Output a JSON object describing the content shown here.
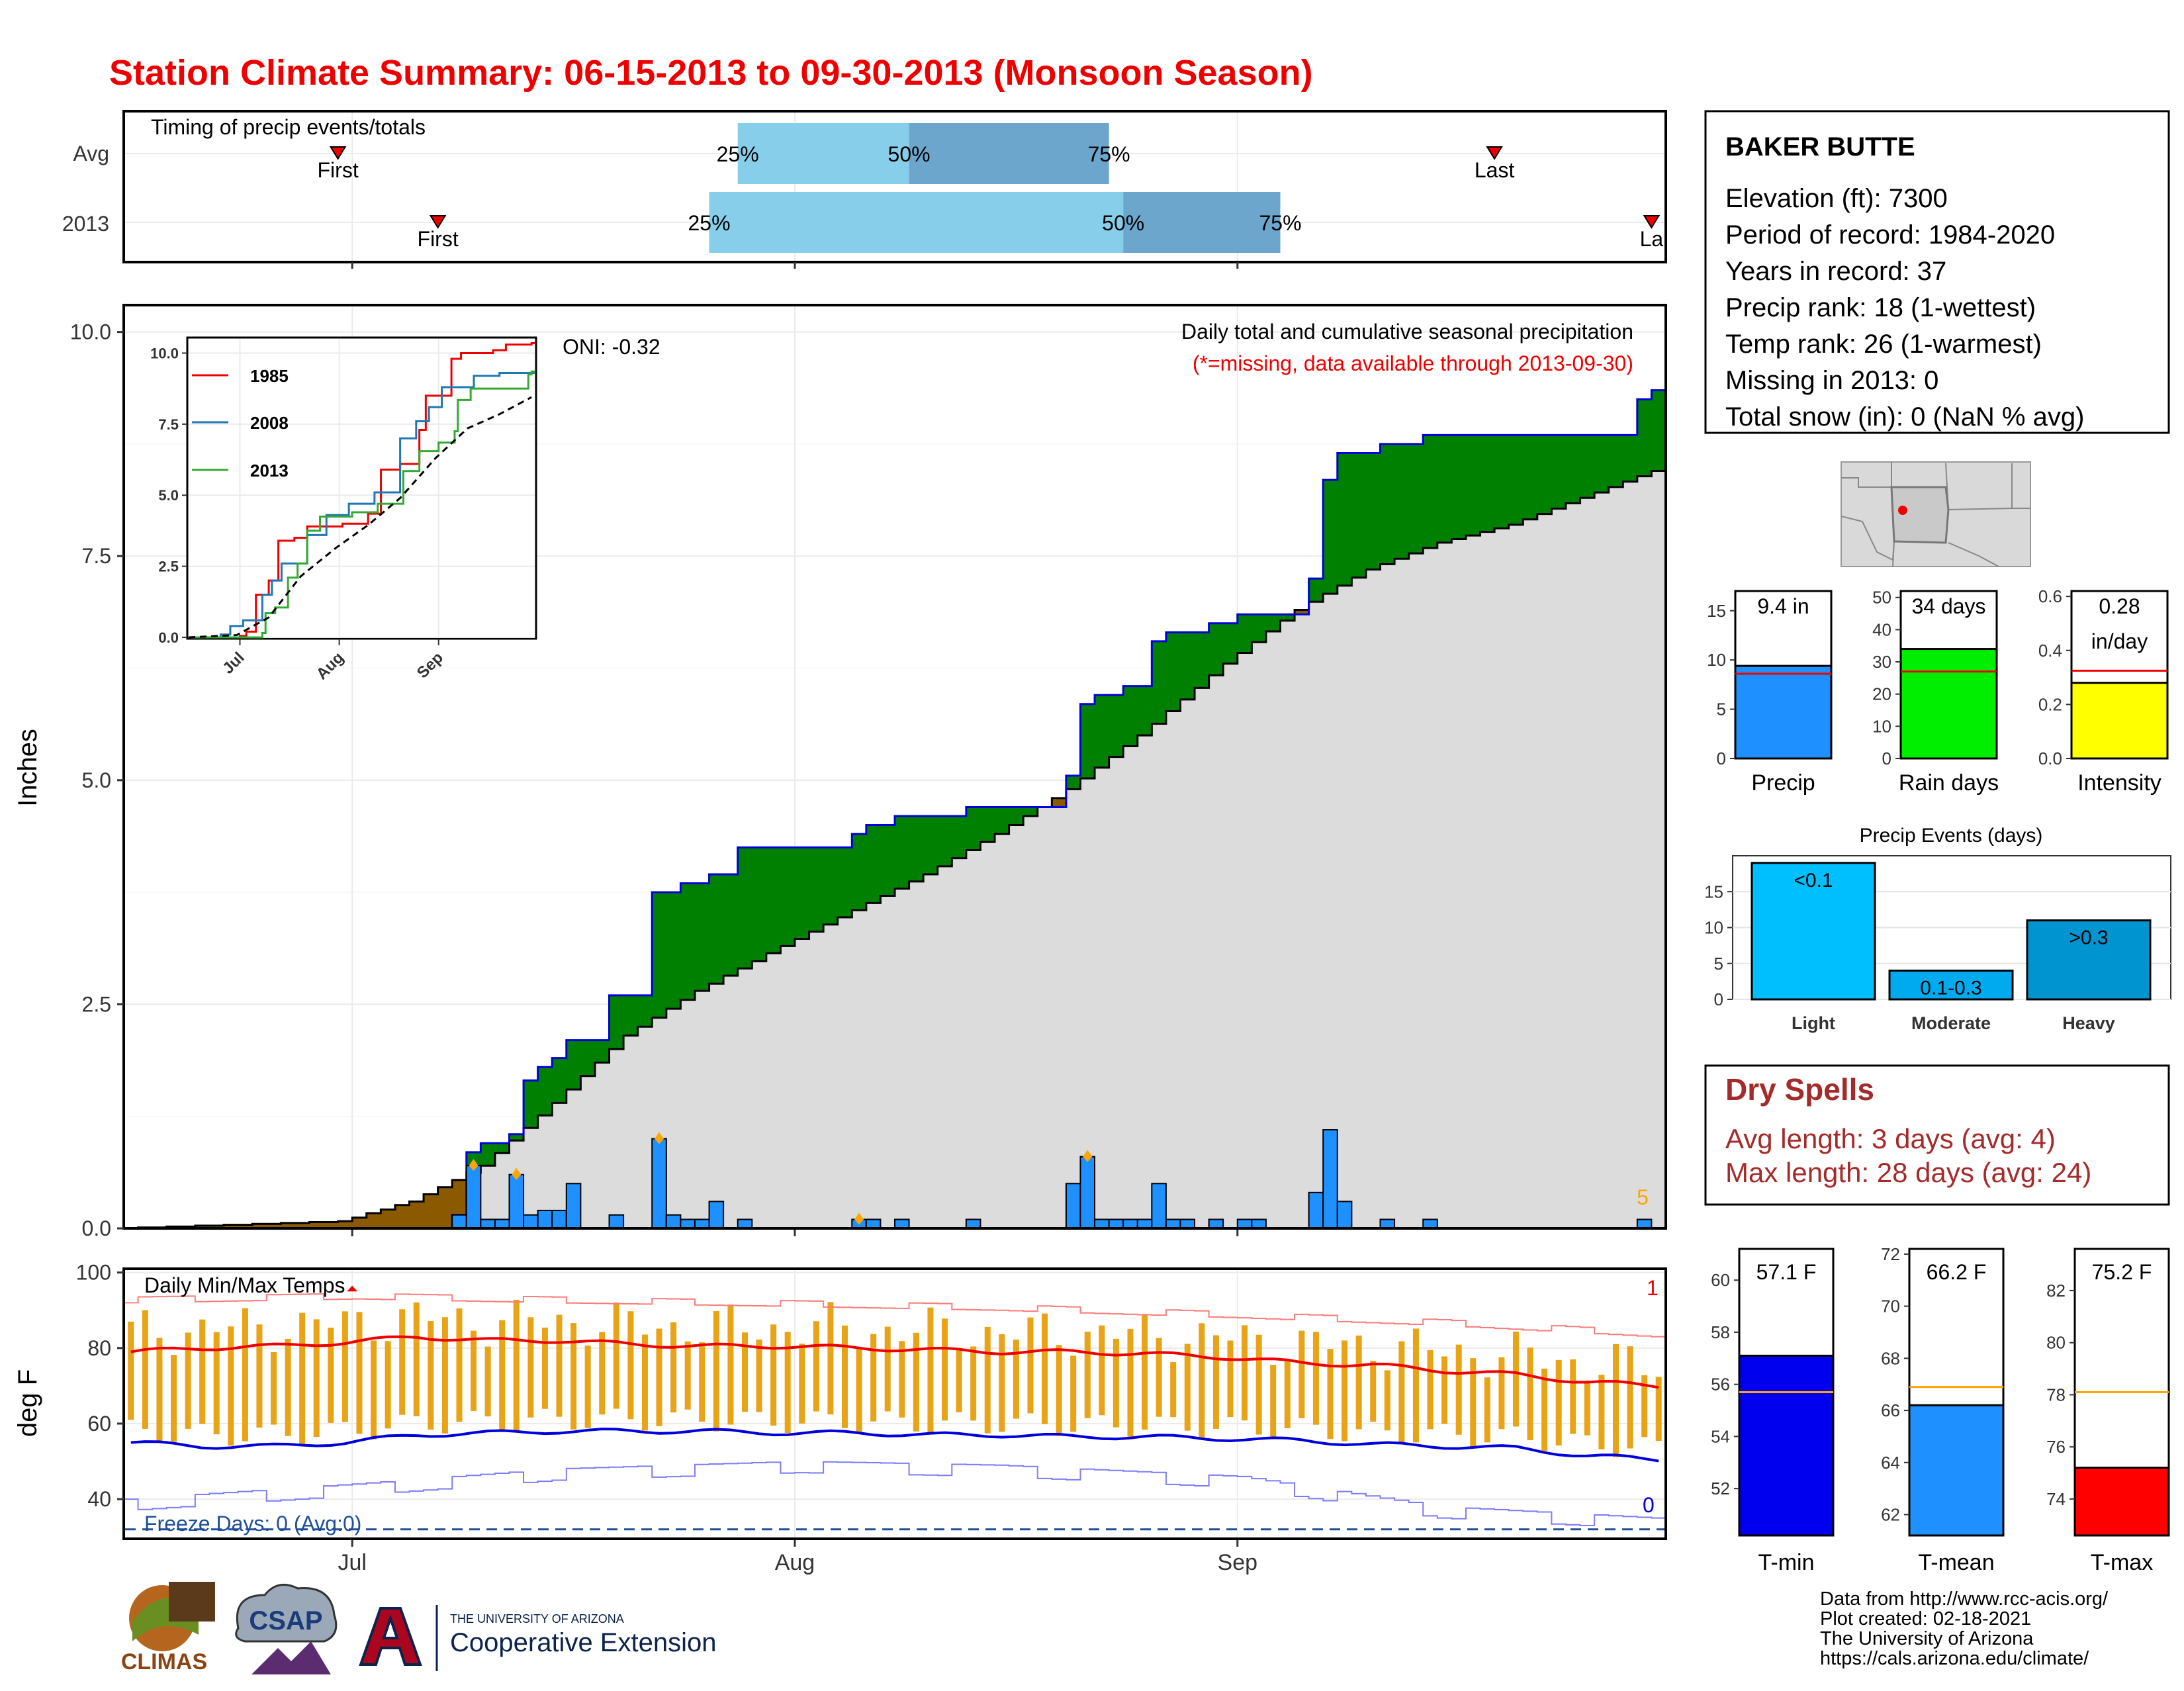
{
  "title": "Station Climate Summary: 06-15-2013 to 09-30-2013 (Monsoon Season)",
  "colors": {
    "title": "#ee0000",
    "precip_bar": "#1e90ff",
    "surplus": "#008000",
    "deficit": "#8b5a00",
    "avg_fill": "#dcdcdc",
    "timing_light": "#87ceeb",
    "timing_dark": "#6ca6cd",
    "tmax_line": "#ee0000",
    "tmin_line": "#0000dd",
    "temp_bar": "#e8a317",
    "dry_spell": "#a52a2a"
  },
  "timing": {
    "title": "Timing of precip events/totals",
    "rows": [
      {
        "label": "Avg",
        "first_label": "First",
        "last_label": "Last",
        "first_date": "2013-06-30",
        "last_date": "2013-09-19",
        "p25_label": "25%",
        "p50_label": "50%",
        "p75_label": "75%",
        "p25_date": "2013-07-28",
        "p50_date": "2013-08-09",
        "p75_date": "2013-08-23"
      },
      {
        "label": "2013",
        "first_label": "First",
        "last_label": "La",
        "first_date": "2013-07-07",
        "last_date": "2013-09-30",
        "p25_date": "2013-07-26",
        "p50_date": "2013-08-24",
        "p75_date": "2013-09-04",
        "p25_label": "25%",
        "p50_label": "50%",
        "p75_label": "75%"
      }
    ]
  },
  "main": {
    "y_label": "Inches",
    "subtitle": "Daily total and cumulative seasonal precipitation",
    "missing_note": "(*=missing, data available through 2013-09-30)",
    "oni": "ONI: -0.32",
    "corner_label": "5",
    "y_ticks": [
      "0.0",
      "2.5",
      "5.0",
      "7.5",
      "10.0"
    ],
    "x_ticks": [
      "Jul",
      "Aug",
      "Sep"
    ]
  },
  "inset": {
    "legend": [
      "1985",
      "2008",
      "2013"
    ],
    "y_ticks": [
      "0.0",
      "2.5",
      "5.0",
      "7.5",
      "10.0"
    ],
    "x_ticks": [
      "Jul",
      "Aug",
      "Sep"
    ]
  },
  "temps": {
    "y_label": "deg F",
    "title": "Daily Min/Max Temps",
    "freeze": "Freeze Days: 0 (Avg:0)",
    "top_count": "1",
    "bottom_count": "0",
    "y_ticks": [
      "40",
      "60",
      "80",
      "100"
    ]
  },
  "station": {
    "name": "BAKER BUTTE",
    "lines": [
      "Elevation (ft): 7300",
      "Period of record: 1984-2020",
      "Years in record: 37",
      "Precip rank: 18 (1-wettest)",
      "Temp rank: 26 (1-warmest)",
      "Missing in 2013: 0",
      "Total snow (in): 0 (NaN % avg)"
    ]
  },
  "mini_bars": [
    {
      "label": "Precip",
      "value_text": "9.4 in",
      "value": 9.4,
      "avg": 8.6,
      "ymax": 17,
      "ticks": [
        "0",
        "5",
        "10",
        "15"
      ],
      "tick_vals": [
        0,
        5,
        10,
        15
      ],
      "color": "#1e90ff"
    },
    {
      "label": "Rain days",
      "value_text": "34 days",
      "value": 34,
      "avg": 27,
      "ymax": 52,
      "ticks": [
        "0",
        "10",
        "20",
        "30",
        "40",
        "50"
      ],
      "tick_vals": [
        0,
        10,
        20,
        30,
        40,
        50
      ],
      "color": "#00ee00"
    },
    {
      "label": "Intensity",
      "value_text": "0.28",
      "value_text2": "in/day",
      "value": 0.28,
      "avg": 0.325,
      "ymax": 0.62,
      "ticks": [
        "0.0",
        "0.2",
        "0.4",
        "0.6"
      ],
      "tick_vals": [
        0,
        0.2,
        0.4,
        0.6
      ],
      "color": "#ffff00"
    }
  ],
  "events": {
    "title": "Precip Events (days)",
    "y_ticks": [
      "0",
      "5",
      "10",
      "15"
    ],
    "categories": [
      "Light",
      "Moderate",
      "Heavy"
    ],
    "bar_labels": [
      "<0.1",
      "0.1-0.3",
      ">0.3"
    ],
    "values": [
      19,
      4,
      11
    ]
  },
  "dry": {
    "title": "Dry Spells",
    "avg": "Avg length: 3 days (avg: 4)",
    "max": "Max length: 28 days (avg: 24)"
  },
  "temp_bars": [
    {
      "label": "T-min",
      "value_text": "57.1 F",
      "value": 57.1,
      "avg": 55.7,
      "ymin": 50.2,
      "ymax": 61.2,
      "ticks": [
        "52",
        "54",
        "56",
        "58",
        "60"
      ],
      "tick_vals": [
        52,
        54,
        56,
        58,
        60
      ],
      "color": "#0000ee"
    },
    {
      "label": "T-mean",
      "value_text": "66.2 F",
      "value": 66.2,
      "avg": 66.9,
      "ymin": 61.2,
      "ymax": 72.2,
      "ticks": [
        "62",
        "64",
        "66",
        "68",
        "70",
        "72"
      ],
      "tick_vals": [
        62,
        64,
        66,
        68,
        70,
        72
      ],
      "color": "#1e90ff"
    },
    {
      "label": "T-max",
      "value_text": "75.2 F",
      "value": 75.2,
      "avg": 78.1,
      "ymin": 72.6,
      "ymax": 83.6,
      "ticks": [
        "74",
        "76",
        "78",
        "80",
        "82"
      ],
      "tick_vals": [
        74,
        76,
        78,
        80,
        82
      ],
      "color": "#ff0000"
    }
  ],
  "footer": [
    "Data from http://www.rcc-acis.org/",
    "Plot created: 02-18-2021",
    "The University of Arizona",
    "https://cals.arizona.edu/climate/"
  ],
  "logos": {
    "climas": "CLIMAS",
    "csap": "CSAP",
    "ua_small": "THE UNIVERSITY OF ARIZONA",
    "ua_big": "Cooperative Extension"
  },
  "chart_data": [
    {
      "type": "bar",
      "title": "Daily total and cumulative seasonal precipitation",
      "ylabel": "Inches",
      "ylim": [
        0,
        10.3
      ],
      "x_range": [
        "2013-06-15",
        "2013-09-30"
      ],
      "daily_precip": {
        "dates": [
          "2013-07-08",
          "2013-07-09",
          "2013-07-10",
          "2013-07-11",
          "2013-07-12",
          "2013-07-13",
          "2013-07-14",
          "2013-07-15",
          "2013-07-16",
          "2013-07-19",
          "2013-07-22",
          "2013-07-23",
          "2013-07-24",
          "2013-07-25",
          "2013-07-26",
          "2013-07-28",
          "2013-08-05",
          "2013-08-06",
          "2013-08-08",
          "2013-08-13",
          "2013-08-20",
          "2013-08-21",
          "2013-08-22",
          "2013-08-23",
          "2013-08-24",
          "2013-08-25",
          "2013-08-26",
          "2013-08-27",
          "2013-08-28",
          "2013-08-30",
          "2013-09-01",
          "2013-09-02",
          "2013-09-06",
          "2013-09-07",
          "2013-09-08",
          "2013-09-11",
          "2013-09-14",
          "2013-09-29"
        ],
        "values": [
          0.15,
          0.7,
          0.1,
          0.1,
          0.6,
          0.15,
          0.2,
          0.2,
          0.5,
          0.15,
          1.0,
          0.15,
          0.1,
          0.1,
          0.3,
          0.1,
          0.1,
          0.1,
          0.1,
          0.1,
          0.5,
          0.8,
          0.1,
          0.1,
          0.1,
          0.1,
          0.5,
          0.1,
          0.1,
          0.1,
          0.1,
          0.1,
          0.4,
          1.1,
          0.3,
          0.1,
          0.1,
          0.1
        ]
      },
      "cumulative_2013": {
        "dates": [
          "2013-06-15",
          "2013-07-08",
          "2013-07-09",
          "2013-07-10",
          "2013-07-12",
          "2013-07-13",
          "2013-07-14",
          "2013-07-15",
          "2013-07-16",
          "2013-07-19",
          "2013-07-22",
          "2013-07-24",
          "2013-07-26",
          "2013-07-28",
          "2013-08-05",
          "2013-08-06",
          "2013-08-08",
          "2013-08-13",
          "2013-08-20",
          "2013-08-21",
          "2013-08-22",
          "2013-08-24",
          "2013-08-26",
          "2013-08-27",
          "2013-08-30",
          "2013-09-01",
          "2013-09-06",
          "2013-09-07",
          "2013-09-08",
          "2013-09-11",
          "2013-09-14",
          "2013-09-29",
          "2013-09-30"
        ],
        "values": [
          0.0,
          0.15,
          0.85,
          0.95,
          1.05,
          1.65,
          1.8,
          1.9,
          2.1,
          2.6,
          3.75,
          3.85,
          3.95,
          4.25,
          4.4,
          4.5,
          4.6,
          4.7,
          5.05,
          5.85,
          5.95,
          6.05,
          6.55,
          6.65,
          6.75,
          6.85,
          7.25,
          8.35,
          8.65,
          8.75,
          8.85,
          9.25,
          9.35
        ]
      },
      "average_cumulative": {
        "dates": [
          "2013-06-15",
          "2013-06-30",
          "2013-07-05",
          "2013-07-10",
          "2013-07-15",
          "2013-07-20",
          "2013-07-25",
          "2013-07-31",
          "2013-08-05",
          "2013-08-10",
          "2013-08-15",
          "2013-08-20",
          "2013-08-25",
          "2013-08-31",
          "2013-09-05",
          "2013-09-10",
          "2013-09-15",
          "2013-09-20",
          "2013-09-25",
          "2013-09-30"
        ],
        "values": [
          0.0,
          0.08,
          0.3,
          0.7,
          1.4,
          2.15,
          2.65,
          3.15,
          3.55,
          3.95,
          4.4,
          4.9,
          5.5,
          6.3,
          6.9,
          7.35,
          7.65,
          7.85,
          8.15,
          8.45
        ]
      }
    },
    {
      "type": "line",
      "title": "",
      "ylim": [
        0,
        10.5
      ],
      "x_range": [
        "2013-06-15",
        "2013-09-30"
      ],
      "series": [
        {
          "name": "1985",
          "color": "#ee0000",
          "dates": [
            "2013-06-15",
            "2013-07-01",
            "2013-07-03",
            "2013-07-06",
            "2013-07-10",
            "2013-07-13",
            "2013-07-18",
            "2013-07-22",
            "2013-08-02",
            "2013-08-10",
            "2013-08-14",
            "2013-08-20",
            "2013-08-26",
            "2013-08-28",
            "2013-09-05",
            "2013-09-08",
            "2013-09-18",
            "2013-09-22",
            "2013-09-30"
          ],
          "values": [
            0.0,
            0.05,
            0.2,
            1.5,
            2.0,
            3.4,
            3.5,
            3.9,
            4.0,
            4.35,
            5.9,
            6.1,
            7.3,
            8.5,
            9.8,
            10.0,
            10.1,
            10.3,
            10.35
          ]
        },
        {
          "name": "2008",
          "color": "#1f77b4",
          "dates": [
            "2013-06-15",
            "2013-06-25",
            "2013-06-28",
            "2013-07-02",
            "2013-07-08",
            "2013-07-11",
            "2013-07-14",
            "2013-07-22",
            "2013-07-28",
            "2013-08-04",
            "2013-08-12",
            "2013-08-20",
            "2013-08-25",
            "2013-08-29",
            "2013-09-02",
            "2013-09-12",
            "2013-09-20",
            "2013-09-30"
          ],
          "values": [
            0.0,
            0.1,
            0.4,
            0.6,
            1.5,
            2.0,
            2.6,
            3.6,
            4.3,
            4.7,
            5.1,
            7.0,
            7.6,
            8.1,
            8.8,
            9.2,
            9.3,
            9.3
          ]
        },
        {
          "name": "2013",
          "color": "#33aa33",
          "dates": [
            "2013-06-15",
            "2013-07-08",
            "2013-07-09",
            "2013-07-12",
            "2013-07-16",
            "2013-07-19",
            "2013-07-22",
            "2013-07-26",
            "2013-08-05",
            "2013-08-13",
            "2013-08-21",
            "2013-08-26",
            "2013-09-01",
            "2013-09-06",
            "2013-09-07",
            "2013-09-11",
            "2013-09-29",
            "2013-09-30"
          ],
          "values": [
            0.0,
            0.15,
            0.85,
            1.05,
            2.1,
            2.6,
            3.75,
            4.25,
            4.4,
            4.7,
            5.85,
            6.55,
            6.85,
            7.25,
            8.35,
            8.75,
            9.25,
            9.35
          ]
        },
        {
          "name": "",
          "color": "#000000",
          "dash": true,
          "dates": [
            "2013-06-15",
            "2013-06-30",
            "2013-07-10",
            "2013-07-20",
            "2013-07-31",
            "2013-08-10",
            "2013-08-20",
            "2013-08-31",
            "2013-09-10",
            "2013-09-20",
            "2013-09-30"
          ],
          "values": [
            0.0,
            0.08,
            0.7,
            2.15,
            3.15,
            3.95,
            4.9,
            6.3,
            7.35,
            7.85,
            8.45
          ]
        }
      ]
    },
    {
      "type": "line",
      "title": "Daily Min/Max Temps",
      "ylabel": "deg F",
      "ylim": [
        29.5,
        101
      ],
      "x_range": [
        "2013-06-15",
        "2013-09-30"
      ],
      "series": [
        {
          "name": "",
          "color": "#ee0000",
          "dates": [
            "2013-06-15",
            "2013-06-20",
            "2013-06-25",
            "2013-06-30",
            "2013-07-05",
            "2013-07-10",
            "2013-07-15",
            "2013-07-20",
            "2013-07-25",
            "2013-07-31",
            "2013-08-05",
            "2013-08-10",
            "2013-08-15",
            "2013-08-20",
            "2013-08-25",
            "2013-08-31",
            "2013-09-05",
            "2013-09-10",
            "2013-09-15",
            "2013-09-20",
            "2013-09-25",
            "2013-09-30"
          ],
          "values": [
            79,
            80,
            80.5,
            81.5,
            83,
            82,
            82,
            81,
            80.5,
            80.5,
            80,
            79.5,
            79,
            79,
            78.5,
            77.5,
            76,
            75.5,
            74,
            73,
            71,
            70
          ]
        },
        {
          "name": "",
          "color": "#0000dd",
          "dates": [
            "2013-06-15",
            "2013-06-20",
            "2013-06-25",
            "2013-06-30",
            "2013-07-05",
            "2013-07-10",
            "2013-07-15",
            "2013-07-20",
            "2013-07-25",
            "2013-07-31",
            "2013-08-05",
            "2013-08-10",
            "2013-08-15",
            "2013-08-20",
            "2013-08-25",
            "2013-08-31",
            "2013-09-05",
            "2013-09-10",
            "2013-09-15",
            "2013-09-20",
            "2013-09-25",
            "2013-09-30"
          ],
          "values": [
            55,
            54,
            54,
            55,
            57,
            57.5,
            58,
            58,
            58,
            57.5,
            57.5,
            57,
            57,
            56.5,
            56.5,
            56,
            55.5,
            54.5,
            54,
            53.5,
            51.5,
            50.5
          ]
        },
        {
          "name": "",
          "color": "#ff7b7b",
          "dates": [
            "2013-06-15",
            "2013-07-01",
            "2013-07-15",
            "2013-08-01",
            "2013-08-15",
            "2013-09-01",
            "2013-09-15",
            "2013-09-30"
          ],
          "values": [
            92,
            93,
            92,
            91,
            90,
            88,
            86,
            83
          ]
        },
        {
          "name": "",
          "color": "#7b7bff",
          "dates": [
            "2013-06-15",
            "2013-07-01",
            "2013-07-15",
            "2013-08-01",
            "2013-08-15",
            "2013-09-01",
            "2013-09-15",
            "2013-09-30"
          ],
          "values": [
            40,
            44,
            48,
            50,
            49,
            46,
            38,
            35
          ]
        }
      ],
      "freeze_line": 32
    }
  ]
}
